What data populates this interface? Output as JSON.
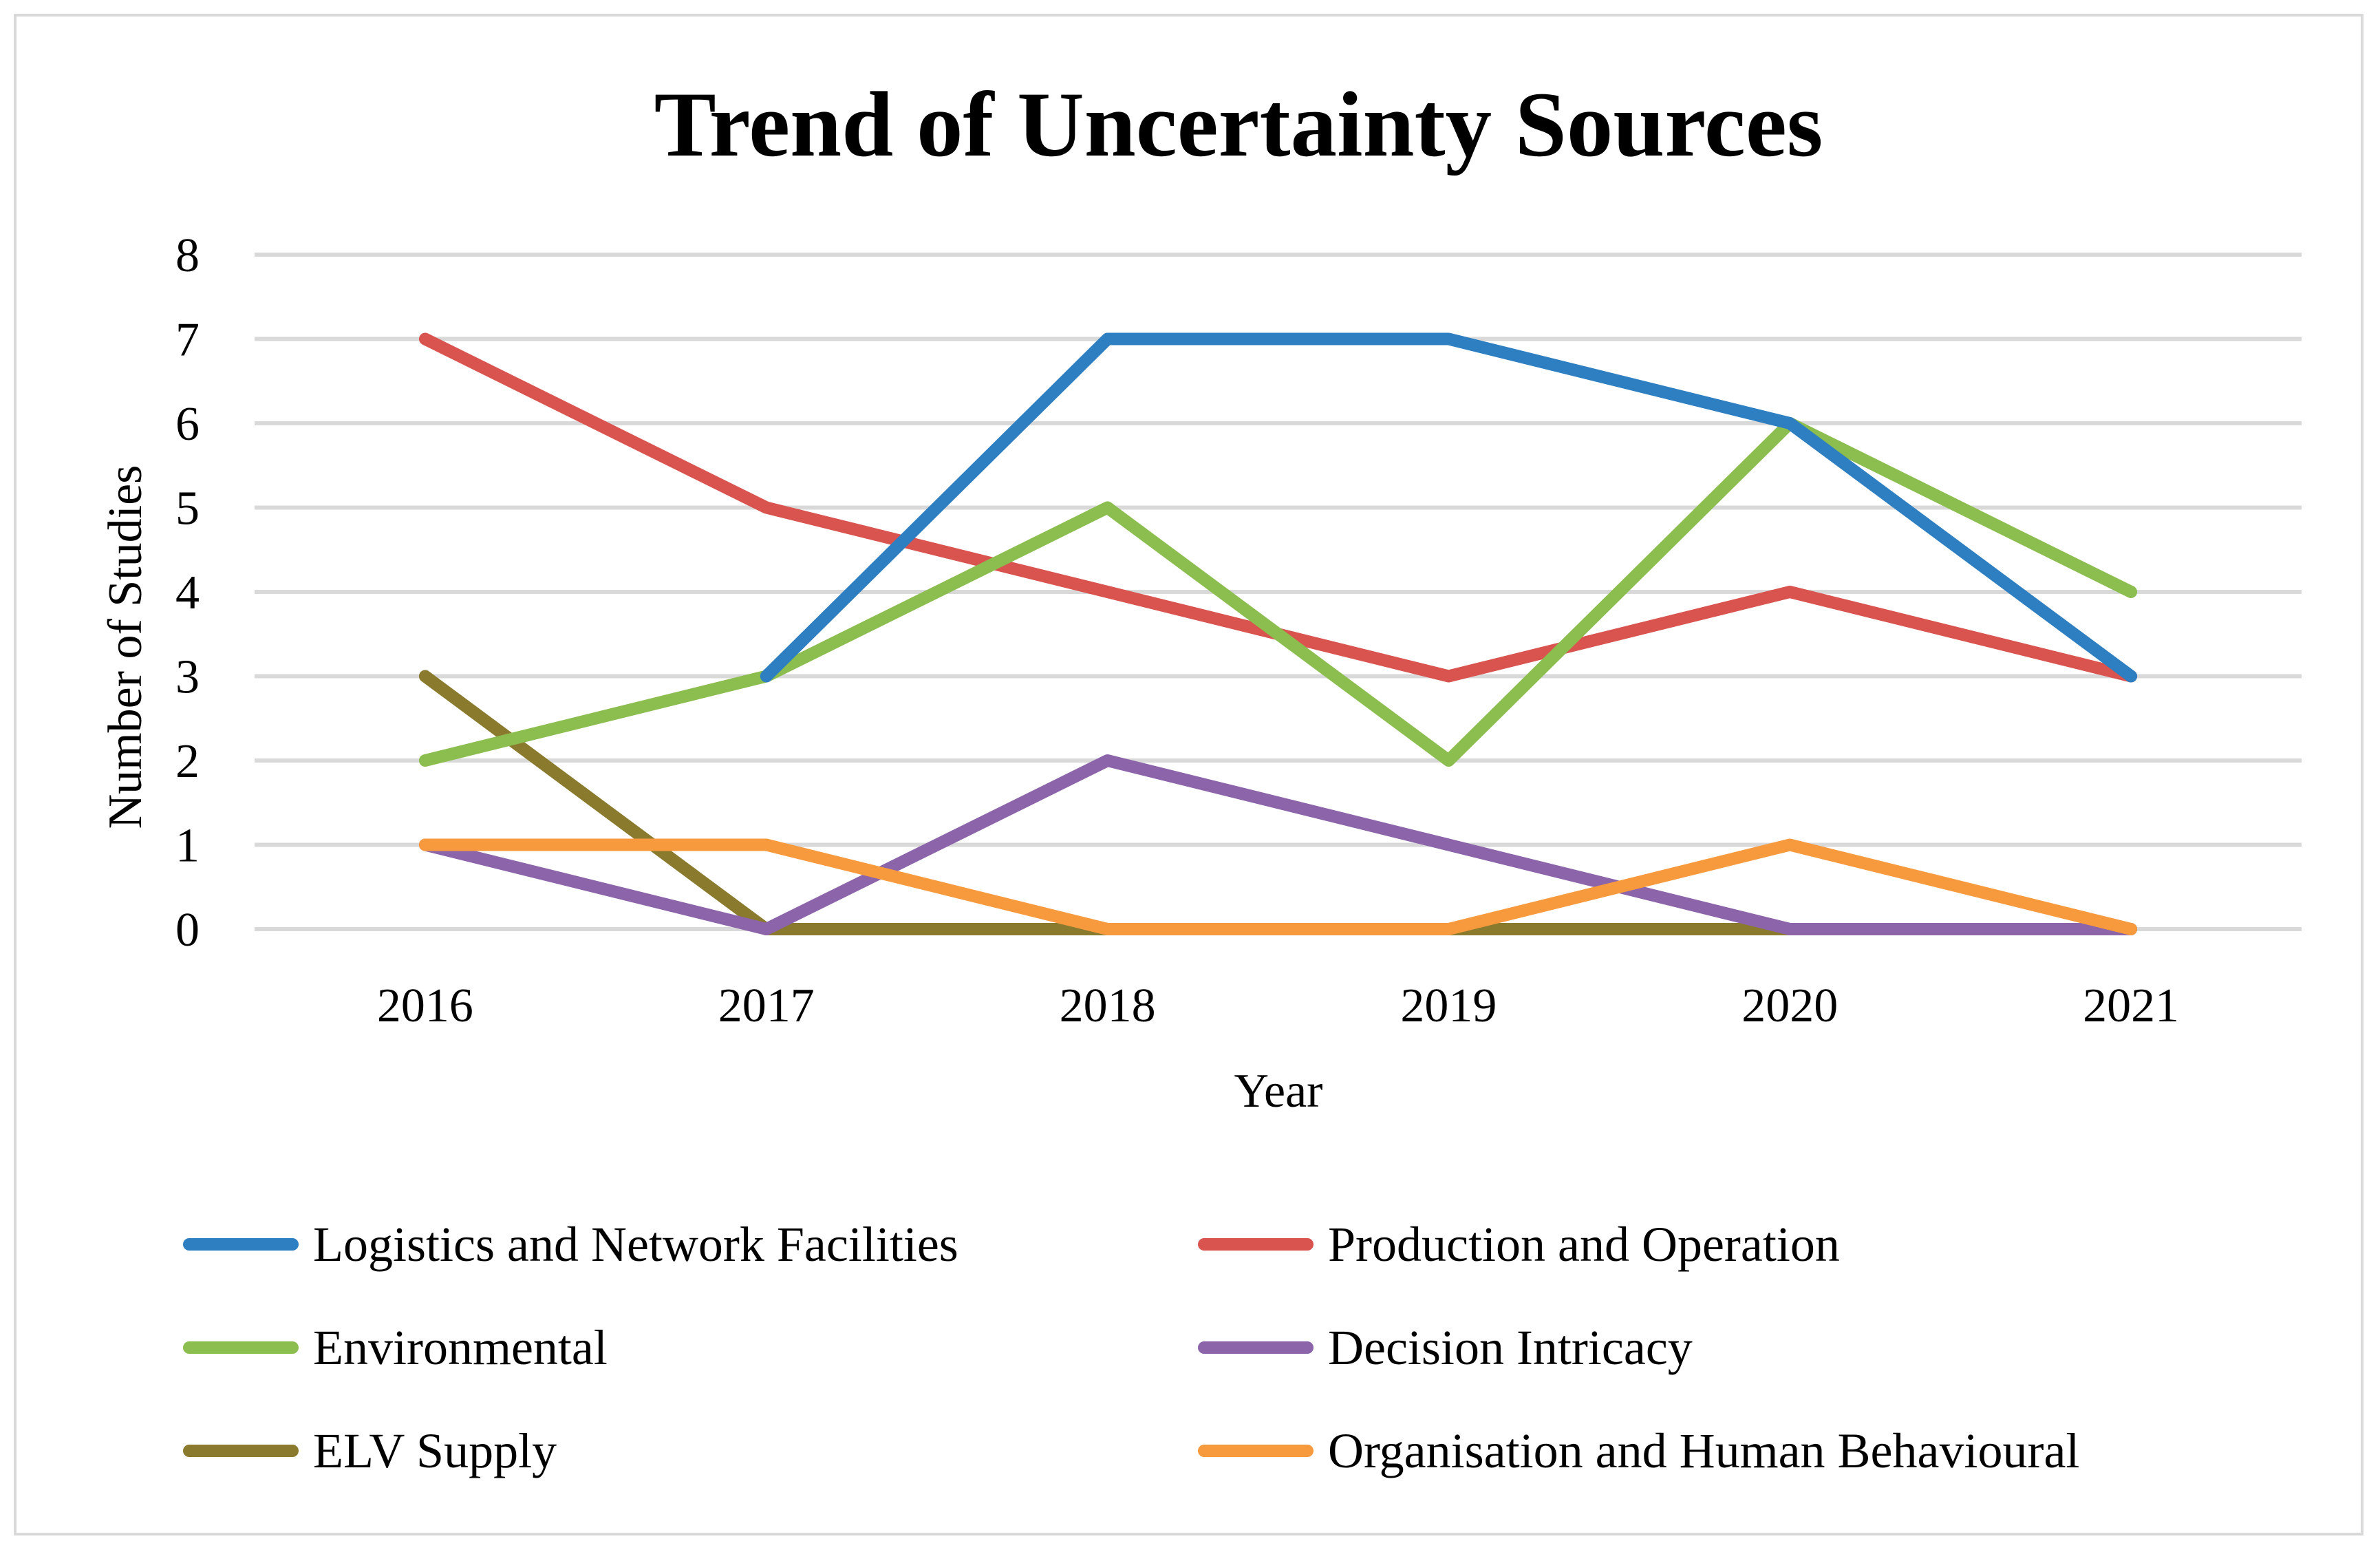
{
  "chart_data": {
    "type": "line",
    "title": "Trend of Uncertainty Sources",
    "xlabel": "Year",
    "ylabel": "Number of Studies",
    "categories": [
      "2016",
      "2017",
      "2018",
      "2019",
      "2020",
      "2021"
    ],
    "ylim": [
      0,
      8
    ],
    "yticks": [
      "0",
      "1",
      "2",
      "3",
      "4",
      "5",
      "6",
      "7",
      "8"
    ],
    "grid": true,
    "legend_position": "bottom",
    "series": [
      {
        "name": "Logistics and Network Facilities",
        "color": "#2e7fc1",
        "values": [
          null,
          3,
          7,
          7,
          6,
          3
        ]
      },
      {
        "name": "Production and Operation",
        "color": "#d9534f",
        "values": [
          7,
          5,
          4,
          3,
          4,
          3
        ]
      },
      {
        "name": "Environmental",
        "color": "#8bbd4f",
        "values": [
          2,
          3,
          5,
          2,
          6,
          4
        ]
      },
      {
        "name": "Decision Intricacy",
        "color": "#8c64aa",
        "values": [
          1,
          0,
          2,
          1,
          0,
          0
        ]
      },
      {
        "name": "ELV Supply",
        "color": "#8a7a2e",
        "values": [
          3,
          0,
          0,
          0,
          0,
          0
        ]
      },
      {
        "name": "Organisation and Human Behavioural",
        "color": "#f79a3e",
        "values": [
          1,
          1,
          0,
          0,
          1,
          0
        ]
      }
    ]
  }
}
